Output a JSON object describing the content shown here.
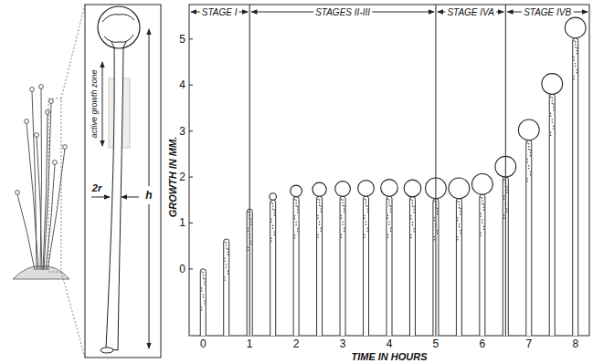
{
  "chart_data": {
    "type": "growth",
    "xlabel": "TIME IN HOURS",
    "ylabel": "GROWTH IN MM.",
    "x": [
      0,
      0.5,
      1,
      1.5,
      2,
      2.5,
      3,
      3.5,
      4,
      4.5,
      5,
      5.5,
      6,
      6.5,
      7,
      7.5,
      8
    ],
    "values": [
      0,
      0.65,
      1.3,
      1.5,
      1.57,
      1.58,
      1.58,
      1.58,
      1.58,
      1.57,
      1.53,
      1.53,
      1.62,
      2.0,
      2.8,
      3.8,
      5.02
    ],
    "sporangium_diameter": [
      null,
      null,
      null,
      0.15,
      0.25,
      0.3,
      0.33,
      0.35,
      0.37,
      0.37,
      0.45,
      0.45,
      0.45,
      0.45,
      0.45,
      0.45,
      0.45
    ],
    "xlim": [
      -0.3,
      8.3
    ],
    "xticks": [
      0,
      1,
      2,
      3,
      4,
      5,
      6,
      7,
      8
    ],
    "ylim": [
      -1.45,
      5.75
    ],
    "yticks": [
      0,
      1,
      2,
      3,
      4,
      5
    ],
    "stage_boundaries": [
      1,
      5,
      6.5
    ],
    "stage_labels": [
      "STAGE I",
      "STAGES II-III",
      "STAGE IVA",
      "STAGE IVB"
    ],
    "grid": false
  },
  "illustration": {
    "growth_zone_label": "active growth zone",
    "radius_label": "2r",
    "height_label": "h"
  }
}
